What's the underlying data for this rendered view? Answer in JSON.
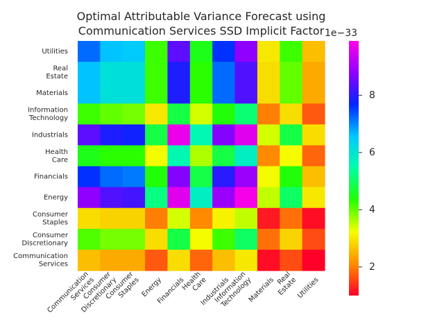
{
  "chart_data": {
    "type": "heatmap",
    "title": "Optimal Attributable Variance Forecast using Communication Services SSD Implicit Factor",
    "title_lines": [
      "Optimal Attributable Variance Forecast using",
      "Communication Services SSD Implicit Factor"
    ],
    "x_categories": [
      "Communication Services",
      "Consumer Discretionary",
      "Consumer Staples",
      "Energy",
      "Financials",
      "Health Care",
      "Industrials",
      "Information Technology",
      "Materials",
      "Real Estate",
      "Utilities"
    ],
    "y_categories": [
      "Utilities",
      "Real Estate",
      "Materials",
      "Information Technology",
      "Industrials",
      "Health Care",
      "Financials",
      "Energy",
      "Consumer Staples",
      "Consumer Discretionary",
      "Communication Services"
    ],
    "values": [
      [
        7.2,
        6.6,
        6.5,
        4.2,
        8.4,
        4.5,
        7.6,
        8.8,
        3.0,
        4.2,
        2.6
      ],
      [
        6.6,
        6.1,
        6.1,
        4.2,
        7.9,
        4.3,
        7.2,
        8.3,
        2.9,
        4.0,
        2.4
      ],
      [
        6.6,
        6.1,
        6.1,
        4.2,
        7.9,
        4.3,
        7.2,
        8.3,
        2.9,
        4.0,
        2.4
      ],
      [
        4.2,
        4.0,
        3.9,
        3.0,
        4.8,
        3.4,
        4.4,
        5.1,
        2.0,
        2.9,
        1.7
      ],
      [
        8.4,
        7.9,
        7.8,
        4.8,
        9.7,
        5.6,
        8.7,
        9.6,
        3.4,
        4.8,
        2.9
      ],
      [
        4.5,
        4.3,
        4.3,
        3.2,
        5.6,
        3.6,
        4.8,
        5.8,
        2.1,
        3.2,
        1.8
      ],
      [
        7.6,
        7.2,
        7.1,
        4.4,
        8.7,
        4.8,
        8.0,
        8.9,
        3.2,
        4.4,
        2.6
      ],
      [
        8.8,
        8.3,
        8.2,
        5.2,
        9.6,
        5.8,
        8.9,
        9.8,
        3.5,
        5.0,
        3.0
      ],
      [
        2.9,
        2.8,
        2.8,
        2.0,
        3.4,
        2.1,
        3.1,
        3.5,
        1.2,
        1.9,
        1.1
      ],
      [
        4.1,
        3.9,
        3.9,
        2.9,
        4.8,
        3.2,
        4.2,
        5.0,
        1.9,
        2.8,
        1.6
      ],
      [
        2.6,
        2.4,
        2.4,
        1.7,
        2.9,
        1.8,
        2.6,
        3.0,
        1.1,
        1.6,
        1.0
      ]
    ],
    "scale_exponent": "1e−33",
    "colormap": "gist_rainbow (reversed)",
    "vmin": 1.0,
    "vmax": 9.9,
    "colorbar_ticks": [
      2,
      4,
      6,
      8
    ],
    "grid": false
  }
}
